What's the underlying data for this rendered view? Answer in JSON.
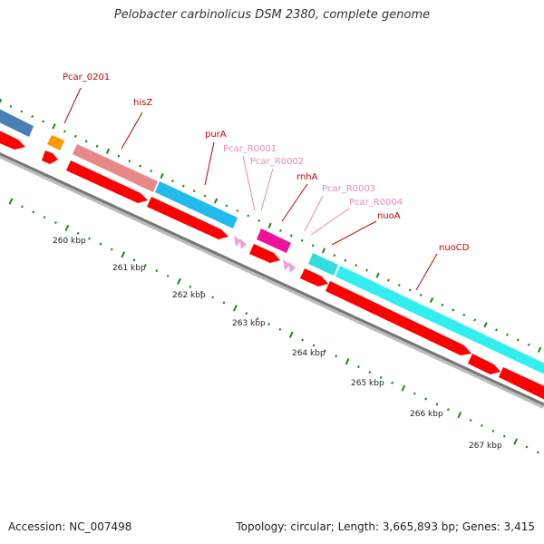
{
  "header": {
    "title": "Pelobacter carbinolicus DSM 2380, complete genome"
  },
  "footer": {
    "accession": "Accession: NC_007498",
    "summary": "Topology: circular; Length: 3,665,893 bp; Genes: 3,415"
  },
  "colors": {
    "backbone": "#888888",
    "tick": "#1a8a1a",
    "cds_arrow": "#ff0000",
    "gene_label": "#cc0000",
    "trna_label": "#ee88bb"
  },
  "features": [
    {
      "name": "",
      "type": "gene",
      "color": "#4a7fb5"
    },
    {
      "name": "Pcar_0201",
      "type": "gene",
      "color": "#ff9900"
    },
    {
      "name": "hisZ",
      "type": "gene",
      "color": "#e88888"
    },
    {
      "name": "purA",
      "type": "gene",
      "color": "#22bbee"
    },
    {
      "name": "Pcar_R0001",
      "type": "trna",
      "color": "#f0a0d8"
    },
    {
      "name": "Pcar_R0002",
      "type": "trna",
      "color": "#f0a0d8"
    },
    {
      "name": "rnhA",
      "type": "gene",
      "color": "#ee1199"
    },
    {
      "name": "Pcar_R0003",
      "type": "trna",
      "color": "#f0a0d8"
    },
    {
      "name": "Pcar_R0004",
      "type": "trna",
      "color": "#f0a0d8"
    },
    {
      "name": "nuoA",
      "type": "gene",
      "color": "#33dddd"
    },
    {
      "name": "nuoCD",
      "type": "gene",
      "color": "#33eeee"
    }
  ],
  "scale": {
    "labels": [
      "260 kbp",
      "261 kbp",
      "262 kbp",
      "263 kbp",
      "264 kbp",
      "265 kbp",
      "266 kbp",
      "267 kbp"
    ]
  }
}
